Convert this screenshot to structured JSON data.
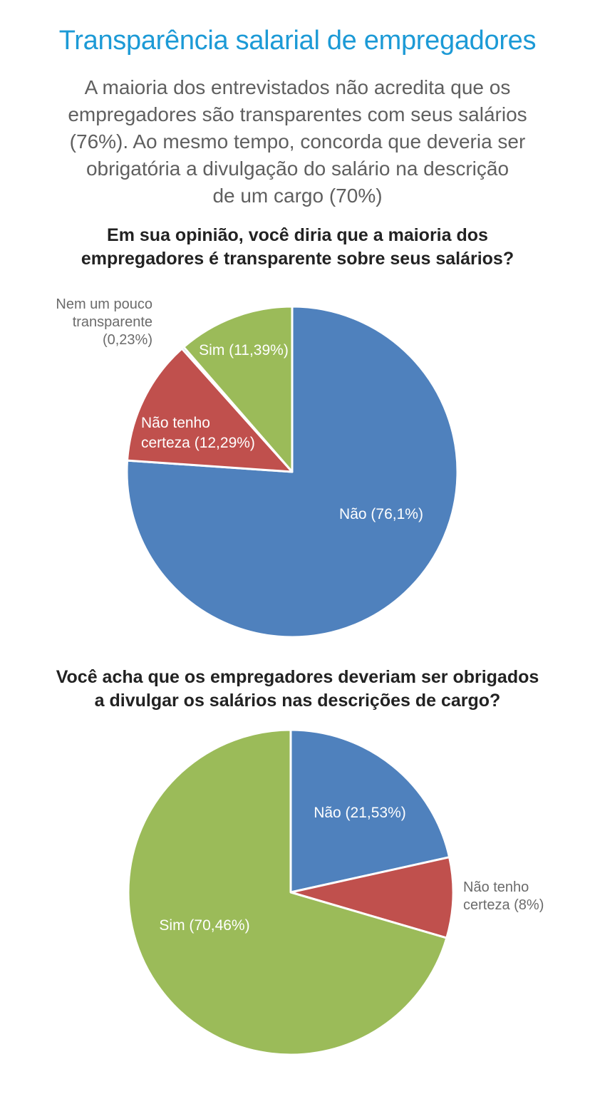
{
  "header": {
    "title": "Transparência salarial de empregadores",
    "subtitle_lines": [
      "A maioria dos entrevistados não acredita que os",
      "empregadores são transparentes com seus salários",
      "(76%). Ao mesmo tempo, concorda que deveria ser",
      "obrigatória a divulgação do salário na descrição",
      "de um cargo (70%)"
    ]
  },
  "chart_data": [
    {
      "type": "pie",
      "title_lines": [
        "Em sua opinião, você diria que a maioria dos",
        "empregadores é transparente sobre seus salários?"
      ],
      "slices": [
        {
          "name": "Não",
          "value": 76.1,
          "color": "#4f81bd",
          "label_lines": [
            "Não (76,1%)"
          ]
        },
        {
          "name": "Não tenho certeza",
          "value": 12.29,
          "color": "#c0504d",
          "label_lines": [
            "Não tenho",
            "certeza (12,29%)"
          ]
        },
        {
          "name": "Nem um pouco transparente",
          "value": 0.23,
          "color": "#4f81bd",
          "label_lines": [
            "Nem um pouco",
            "transparente",
            "(0,23%)"
          ],
          "label_outside": true
        },
        {
          "name": "Sim",
          "value": 11.39,
          "color": "#9bbb59",
          "label_lines": [
            "Sim (11,39%)"
          ]
        }
      ]
    },
    {
      "type": "pie",
      "title_lines": [
        "Você acha que os empregadores deveriam ser obrigados",
        "a divulgar os salários nas descrições de cargo?"
      ],
      "slices": [
        {
          "name": "Não",
          "value": 21.53,
          "color": "#4f81bd",
          "label_lines": [
            "Não (21,53%)"
          ]
        },
        {
          "name": "Não tenho certeza",
          "value": 8,
          "color": "#c0504d",
          "label_lines": [
            "Não tenho",
            "certeza (8%)"
          ],
          "label_outside": true
        },
        {
          "name": "Sim",
          "value": 70.46,
          "color": "#9bbb59",
          "label_lines": [
            "Sim (70,46%)"
          ]
        }
      ]
    }
  ]
}
